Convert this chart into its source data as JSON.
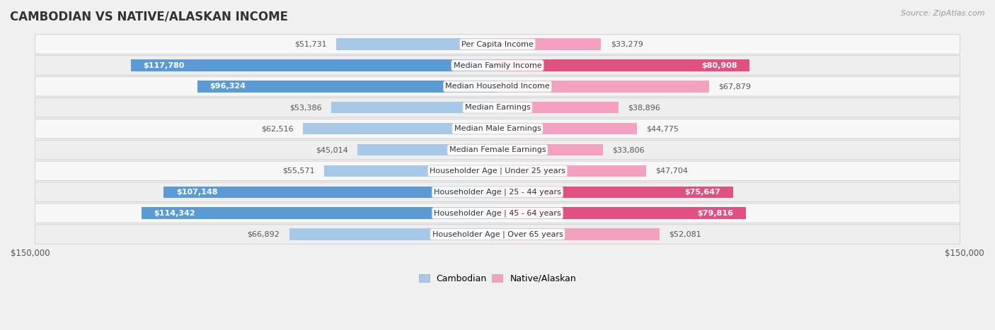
{
  "title": "CAMBODIAN VS NATIVE/ALASKAN INCOME",
  "source": "Source: ZipAtlas.com",
  "categories": [
    "Per Capita Income",
    "Median Family Income",
    "Median Household Income",
    "Median Earnings",
    "Median Male Earnings",
    "Median Female Earnings",
    "Householder Age | Under 25 years",
    "Householder Age | 25 - 44 years",
    "Householder Age | 45 - 64 years",
    "Householder Age | Over 65 years"
  ],
  "cambodian_values": [
    51731,
    117780,
    96324,
    53386,
    62516,
    45014,
    55571,
    107148,
    114342,
    66892
  ],
  "native_values": [
    33279,
    80908,
    67879,
    38896,
    44775,
    33806,
    47704,
    75647,
    79816,
    52081
  ],
  "cambodian_labels": [
    "$51,731",
    "$117,780",
    "$96,324",
    "$53,386",
    "$62,516",
    "$45,014",
    "$55,571",
    "$107,148",
    "$114,342",
    "$66,892"
  ],
  "native_labels": [
    "$33,279",
    "$80,908",
    "$67,879",
    "$38,896",
    "$44,775",
    "$33,806",
    "$47,704",
    "$75,647",
    "$79,816",
    "$52,081"
  ],
  "cambodian_color_light": "#a8c8e8",
  "cambodian_color_dark": "#5b9bd5",
  "native_color_light": "#f4a0c0",
  "native_color_dark": "#e05080",
  "max_value": 150000,
  "label_threshold_cam": 80000,
  "label_threshold_nat": 70000,
  "row_colors": [
    "#f7f7f7",
    "#eeeeee"
  ],
  "row_border": "#cccccc",
  "bg_color": "#f0f0f0"
}
